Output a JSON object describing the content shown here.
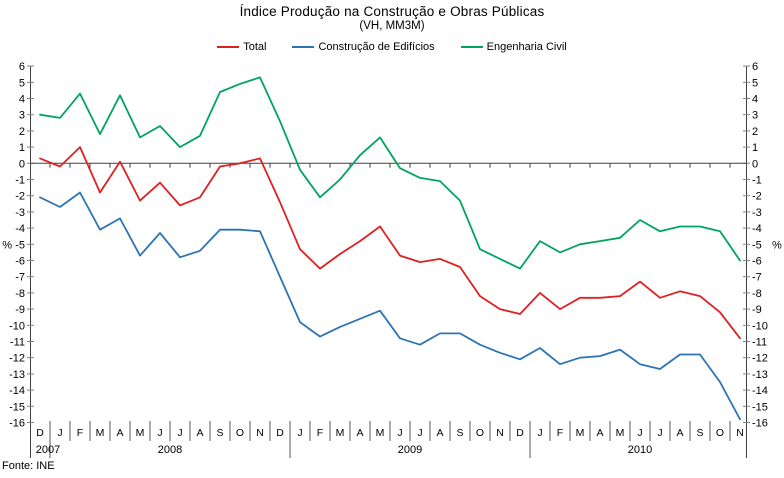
{
  "header": {
    "title": "Índice Produção na Construção e Obras Públicas",
    "subtitle": "(VH, MM3M)"
  },
  "footer": {
    "source": "Fonte: INE"
  },
  "axis_unit": "%",
  "colors": {
    "total": "#e02020",
    "edificios": "#2e74b5",
    "engenharia": "#00a45f",
    "axis": "#404040",
    "tick": "#808080"
  },
  "chart_data": {
    "type": "line",
    "title": "Índice Produção na Construção e Obras Públicas",
    "subtitle": "(VH, MM3M)",
    "ylabel": "%",
    "ylim": [
      -16,
      6
    ],
    "ytick_step": 1,
    "grid": false,
    "legend_position": "top",
    "x_labels": [
      "D",
      "J",
      "F",
      "M",
      "A",
      "M",
      "J",
      "J",
      "A",
      "S",
      "O",
      "N",
      "D",
      "J",
      "F",
      "M",
      "A",
      "M",
      "J",
      "J",
      "A",
      "S",
      "O",
      "N",
      "D",
      "J",
      "F",
      "M",
      "A",
      "M",
      "J",
      "J",
      "A",
      "S",
      "O",
      "N"
    ],
    "years": [
      {
        "label": "2007",
        "start": 0,
        "end": 0
      },
      {
        "label": "2008",
        "start": 1,
        "end": 12
      },
      {
        "label": "2009",
        "start": 13,
        "end": 24
      },
      {
        "label": "2010",
        "start": 25,
        "end": 35
      }
    ],
    "series": [
      {
        "name": "Total",
        "color": "#e02020",
        "values": [
          0.3,
          -0.2,
          1.0,
          -1.8,
          0.1,
          -2.3,
          -1.2,
          -2.6,
          -2.1,
          -0.2,
          0.0,
          0.3,
          -2.4,
          -5.3,
          -6.5,
          -5.6,
          -4.8,
          -3.9,
          -5.7,
          -6.1,
          -5.9,
          -6.4,
          -8.2,
          -9.0,
          -9.3,
          -8.0,
          -9.0,
          -8.3,
          -8.3,
          -8.2,
          -7.3,
          -8.3,
          -7.9,
          -8.2,
          -9.2,
          -10.8
        ]
      },
      {
        "name": "Construção de Edifícios",
        "color": "#2e74b5",
        "values": [
          -2.1,
          -2.7,
          -1.8,
          -4.1,
          -3.4,
          -5.7,
          -4.3,
          -5.8,
          -5.4,
          -4.1,
          -4.1,
          -4.2,
          -7.0,
          -9.8,
          -10.7,
          -10.1,
          -9.6,
          -9.1,
          -10.8,
          -11.2,
          -10.5,
          -10.5,
          -11.2,
          -11.7,
          -12.1,
          -11.4,
          -12.4,
          -12.0,
          -11.9,
          -11.5,
          -12.4,
          -12.7,
          -11.8,
          -11.8,
          -13.5,
          -15.8
        ]
      },
      {
        "name": "Engenharia Civil",
        "color": "#00a45f",
        "values": [
          3.0,
          2.8,
          4.3,
          1.8,
          4.2,
          1.6,
          2.3,
          1.0,
          1.7,
          4.4,
          4.9,
          5.3,
          2.6,
          -0.4,
          -2.1,
          -1.0,
          0.5,
          1.6,
          -0.3,
          -0.9,
          -1.1,
          -2.3,
          -5.3,
          -5.9,
          -6.5,
          -4.8,
          -5.5,
          -5.0,
          -4.8,
          -4.6,
          -3.5,
          -4.2,
          -3.9,
          -3.9,
          -4.2,
          -6.0
        ]
      }
    ]
  }
}
